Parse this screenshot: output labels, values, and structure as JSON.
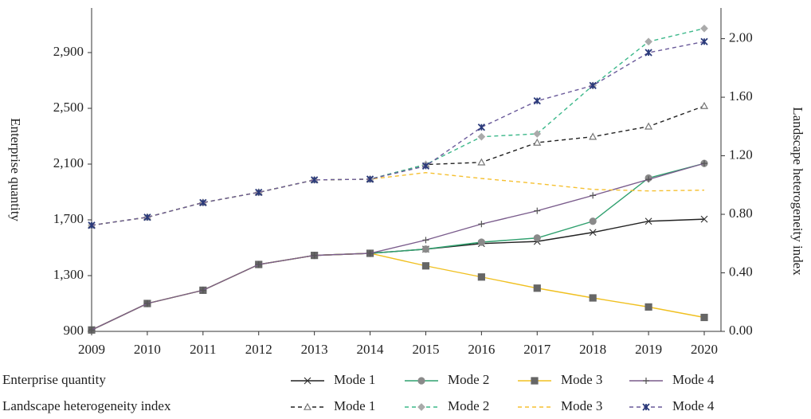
{
  "chart_data": {
    "type": "line",
    "ylabel": "Enterprise quantity",
    "y2label": "Landscape heterogeneity index",
    "categories": [
      "2009",
      "2010",
      "2011",
      "2012",
      "2013",
      "2014",
      "2015",
      "2016",
      "2017",
      "2018",
      "2019",
      "2020"
    ],
    "ylim": [
      900,
      3220
    ],
    "yticks": [
      900,
      {
        "value": 1300,
        "label": "1,300"
      },
      {
        "value": 1700,
        "label": "1,700"
      },
      {
        "value": 2100,
        "label": "2,100"
      },
      {
        "value": 2500,
        "label": "2,500"
      },
      {
        "value": 2900,
        "label": "2,900"
      }
    ],
    "y2lim": [
      0,
      2.21
    ],
    "y2ticks": [
      {
        "value": 0,
        "label": "0.00"
      },
      {
        "value": 0.4,
        "label": "0.40"
      },
      {
        "value": 0.8,
        "label": "0.80"
      },
      {
        "value": 1.2,
        "label": "1.20"
      },
      {
        "value": 1.6,
        "label": "1.60"
      },
      {
        "value": 2,
        "label": "2.00"
      }
    ],
    "legend_groups": [
      "Enterprise quantity",
      "Landscape heterogeneity index"
    ],
    "series": [
      {
        "name": "Mode 1",
        "color": "#222222",
        "marker": "x",
        "marker_color": "#333333",
        "values": [
          910,
          1100,
          1195,
          1380,
          1445,
          1460,
          1490,
          1530,
          1545,
          1610,
          1690,
          1705
        ]
      },
      {
        "name": "Mode 2",
        "color": "#2fa06e",
        "marker": "circle",
        "marker_color": "#8a8a8a",
        "values": [
          910,
          1100,
          1195,
          1380,
          1445,
          1460,
          1490,
          1540,
          1570,
          1690,
          2000,
          2105
        ]
      },
      {
        "name": "Mode 3",
        "color": "#f0c020",
        "marker": "square",
        "marker_color": "#666666",
        "values": [
          910,
          1100,
          1195,
          1380,
          1445,
          1460,
          1370,
          1290,
          1210,
          1140,
          1075,
          1000
        ]
      },
      {
        "name": "Mode 4",
        "color": "#7a5c8c",
        "marker": "plus",
        "marker_color": "#555555",
        "values": [
          910,
          1100,
          1195,
          1380,
          1445,
          1460,
          1555,
          1670,
          1765,
          1875,
          1990,
          2105
        ]
      },
      {
        "name": "Mode 1",
        "color": "#222222",
        "marker": "triangle",
        "marker_color": "#777777",
        "axis": "y2",
        "values": [
          0.725,
          0.78,
          0.88,
          0.95,
          1.035,
          1.04,
          1.14,
          1.155,
          1.29,
          1.33,
          1.4,
          1.54
        ]
      },
      {
        "name": "Mode 2",
        "color": "#3cb88a",
        "marker": "diamond",
        "marker_color": "#aaaaaa",
        "axis": "y2",
        "values": [
          0.725,
          0.78,
          0.88,
          0.95,
          1.035,
          1.04,
          1.14,
          1.33,
          1.35,
          1.68,
          1.98,
          2.07
        ]
      },
      {
        "name": "Mode 3",
        "color": "#f5c030",
        "marker": "none",
        "marker_color": "#f5c030",
        "axis": "y2",
        "values": [
          0.725,
          0.78,
          0.88,
          0.95,
          1.035,
          1.04,
          1.085,
          1.045,
          1.01,
          0.97,
          0.96,
          0.965
        ]
      },
      {
        "name": "Mode 4",
        "color": "#6a5a9a",
        "marker": "star",
        "marker_color": "#2a3a7a",
        "axis": "y2",
        "values": [
          0.725,
          0.78,
          0.88,
          0.95,
          1.035,
          1.04,
          1.13,
          1.395,
          1.575,
          1.68,
          1.905,
          1.98
        ]
      }
    ]
  }
}
